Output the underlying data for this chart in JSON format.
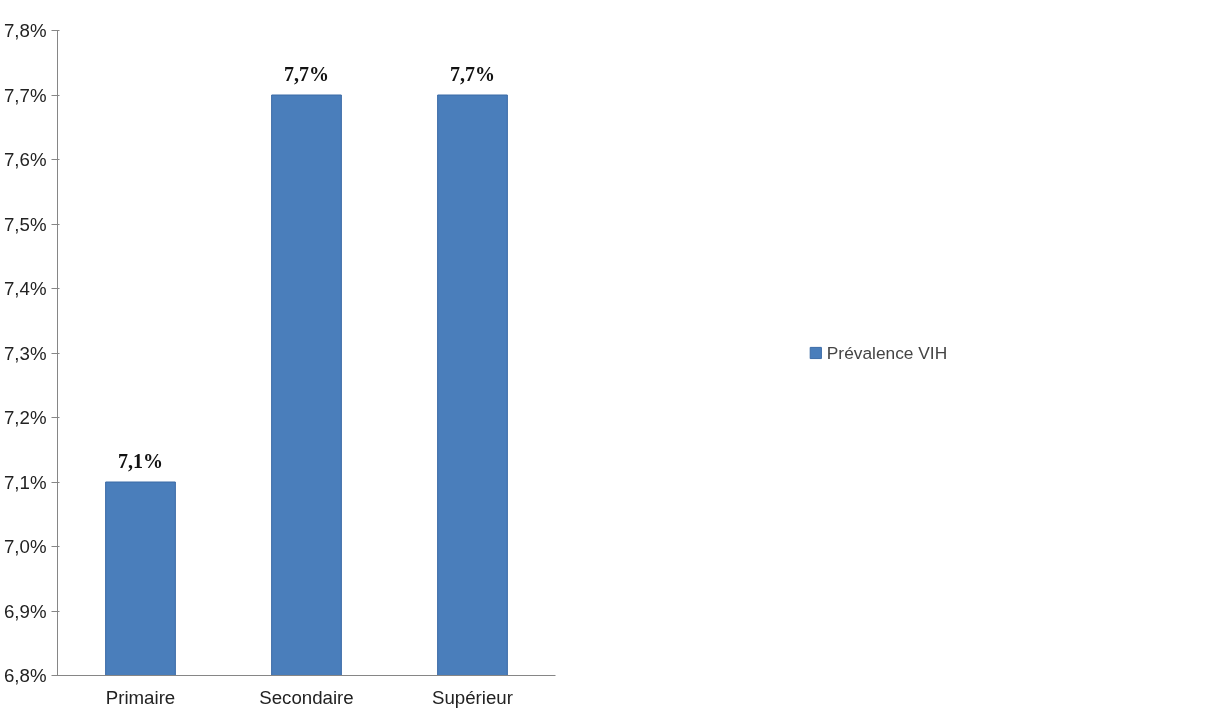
{
  "chart_data": {
    "type": "bar",
    "categories": [
      "Primaire",
      "Secondaire",
      "Supérieur"
    ],
    "series": [
      {
        "name": "Prévalence VIH",
        "color": "#4a7ebb",
        "values": [
          7.1,
          7.7,
          7.7
        ],
        "value_labels": [
          "7,1%",
          "7,7%",
          "7,7%"
        ]
      }
    ],
    "ylim": [
      6.8,
      7.8
    ],
    "yticks": [
      {
        "value": 6.8,
        "label": "6,8%"
      },
      {
        "value": 6.9,
        "label": "6,9%"
      },
      {
        "value": 7.0,
        "label": "7,0%"
      },
      {
        "value": 7.1,
        "label": "7,1%"
      },
      {
        "value": 7.2,
        "label": "7,2%"
      },
      {
        "value": 7.3,
        "label": "7,3%"
      },
      {
        "value": 7.4,
        "label": "7,4%"
      },
      {
        "value": 7.5,
        "label": "7,5%"
      },
      {
        "value": 7.6,
        "label": "7,6%"
      },
      {
        "value": 7.7,
        "label": "7,7%"
      },
      {
        "value": 7.8,
        "label": "7,8%"
      }
    ],
    "grid": false,
    "legend": "right"
  }
}
